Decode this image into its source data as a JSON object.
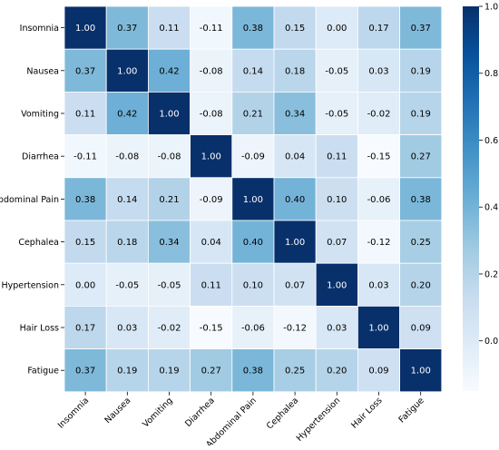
{
  "chart_data": {
    "type": "heatmap",
    "title": "",
    "xlabel": "",
    "ylabel": "",
    "rows": [
      "Insomnia",
      "Nausea",
      "Vomiting",
      "Diarrhea",
      "Abdominal Pain",
      "Cephalea",
      "Hypertension",
      "Hair Loss",
      "Fatigue"
    ],
    "columns": [
      "Insomnia",
      "Nausea",
      "Vomiting",
      "Diarrhea",
      "Abdominal Pain",
      "Cephalea",
      "Hypertension",
      "Hair Loss",
      "Fatigue"
    ],
    "values": [
      [
        1.0,
        0.37,
        0.11,
        -0.11,
        0.38,
        0.15,
        0.0,
        0.17,
        0.37
      ],
      [
        0.37,
        1.0,
        0.42,
        -0.08,
        0.14,
        0.18,
        -0.05,
        0.03,
        0.19
      ],
      [
        0.11,
        0.42,
        1.0,
        -0.08,
        0.21,
        0.34,
        -0.05,
        -0.02,
        0.19
      ],
      [
        -0.11,
        -0.08,
        -0.08,
        1.0,
        -0.09,
        0.04,
        0.11,
        -0.15,
        0.27
      ],
      [
        0.38,
        0.14,
        0.21,
        -0.09,
        1.0,
        0.4,
        0.1,
        -0.06,
        0.38
      ],
      [
        0.15,
        0.18,
        0.34,
        0.04,
        0.4,
        1.0,
        0.07,
        -0.12,
        0.25
      ],
      [
        0.0,
        -0.05,
        -0.05,
        0.11,
        0.1,
        0.07,
        1.0,
        0.03,
        0.2
      ],
      [
        0.17,
        0.03,
        -0.02,
        -0.15,
        -0.06,
        -0.12,
        0.03,
        1.0,
        0.09
      ],
      [
        0.37,
        0.19,
        0.19,
        0.27,
        0.38,
        0.25,
        0.2,
        0.09,
        1.0
      ]
    ],
    "value_format": "2 decimals",
    "colormap": "Blues",
    "color_low": "#f7fbff",
    "color_high": "#08306b",
    "vmin": -0.15,
    "vmax": 1.0,
    "colorbar": {
      "ticks": [
        "0.0",
        "0.2",
        "0.4",
        "0.6",
        "0.8",
        "1.0"
      ],
      "tick_values": [
        0.0,
        0.2,
        0.4,
        0.6,
        0.8,
        1.0
      ],
      "placement": "right"
    },
    "annotations": "cell values shown",
    "x_tick_rotation_deg": 45
  }
}
